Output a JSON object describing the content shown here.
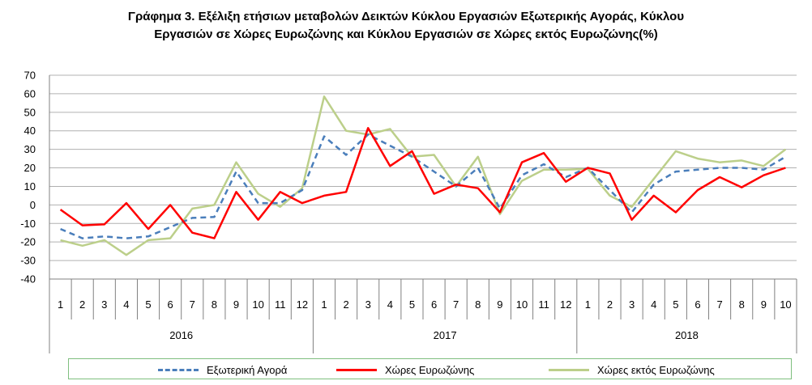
{
  "chart_data": {
    "type": "line",
    "title_line1": "Γράφημα 3. Εξέλιξη  ετήσιων μεταβολών Δεικτών Κύκλου Εργασιών Εξωτερικής Αγοράς,  Κύκλου",
    "title_line2": "Εργασιών σε Χώρες Ευρωζώνης και Κύκλου Εργασιών σε Χώρες εκτός Ευρωζώνης(%)",
    "ylim": [
      -40,
      70
    ],
    "yticks": [
      "70",
      "60",
      "50",
      "40",
      "30",
      "20",
      "10",
      "0",
      "-10",
      "-20",
      "-30",
      "-40"
    ],
    "months": [
      "1",
      "2",
      "3",
      "4",
      "5",
      "6",
      "7",
      "8",
      "9",
      "10",
      "11",
      "12",
      "1",
      "2",
      "3",
      "4",
      "5",
      "6",
      "7",
      "8",
      "9",
      "10",
      "11",
      "12",
      "1",
      "2",
      "3",
      "4",
      "5",
      "6",
      "7",
      "8",
      "9",
      "10"
    ],
    "years": [
      "2016",
      "2017",
      "2018"
    ],
    "grid": "horizontal",
    "legend_position": "bottom",
    "series": [
      {
        "name": "Εξωτερική Αγορά",
        "color": "#4a7ebb",
        "style": "dashed",
        "values": [
          -13,
          -18,
          -17,
          -18,
          -17,
          -12,
          -7,
          -6.5,
          18,
          1,
          1,
          8,
          37,
          27,
          38,
          32,
          26,
          18,
          10,
          20,
          -2,
          16,
          22,
          15,
          20,
          8,
          -4,
          11,
          18,
          19,
          20,
          20,
          19,
          26
        ]
      },
      {
        "name": "Χώρες Ευρωζώνης",
        "color": "#ff0000",
        "style": "solid",
        "values": [
          -2.5,
          -11,
          -10.5,
          1,
          -13,
          0,
          -15,
          -18,
          7,
          -8,
          7,
          1,
          5,
          7,
          41.5,
          21,
          29,
          6,
          11,
          9,
          -4,
          23,
          28,
          12.5,
          20,
          17,
          -8,
          5,
          -4,
          8,
          15,
          9.5,
          16,
          20
        ]
      },
      {
        "name": "Χώρες εκτός Ευρωζώνης",
        "color": "#bccf8a",
        "style": "solid",
        "values": [
          -19,
          -22,
          -19,
          -27,
          -19,
          -18,
          -2,
          0,
          23,
          6,
          -1,
          9,
          58.5,
          40,
          38,
          41,
          26,
          27,
          10,
          26,
          -5,
          13,
          19,
          19,
          19.5,
          5,
          -1,
          14,
          29,
          25,
          23,
          24,
          21,
          30
        ]
      }
    ]
  }
}
